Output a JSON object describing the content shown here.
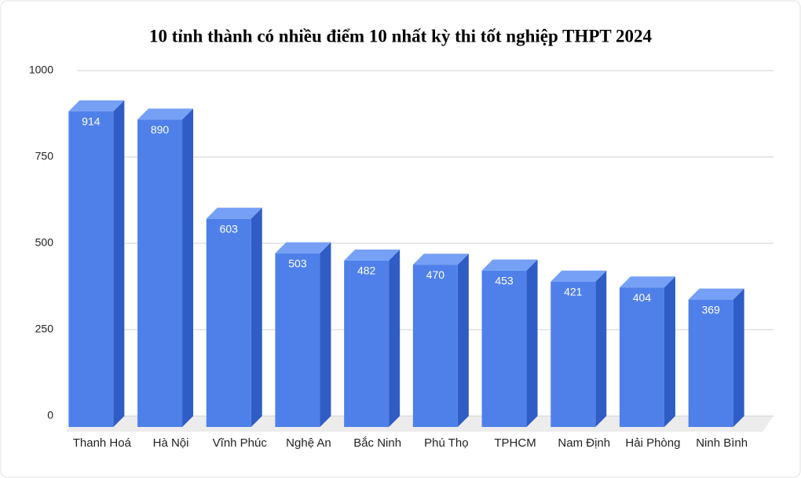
{
  "chart_data": {
    "type": "bar3d",
    "title": "10 tỉnh thành có nhiều điểm 10 nhất kỳ thi tốt nghiệp THPT 2024",
    "categories": [
      "Thanh Hoá",
      "Hà Nội",
      "Vĩnh Phúc",
      "Nghệ An",
      "Bắc Ninh",
      "Phú Thọ",
      "TPHCM",
      "Nam Định",
      "Hải Phòng",
      "Ninh Bình"
    ],
    "values": [
      914,
      890,
      603,
      503,
      482,
      470,
      453,
      421,
      404,
      369
    ],
    "color": "#4f80ea",
    "ylim": [
      0,
      1000
    ],
    "yticks": [
      0,
      250,
      500,
      750,
      1000
    ],
    "grid": true
  }
}
